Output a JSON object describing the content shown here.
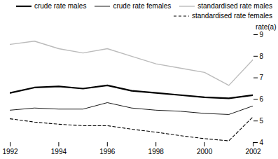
{
  "chart_data": {
    "type": "line",
    "x": [
      1992,
      1993,
      1994,
      1995,
      1996,
      1997,
      1998,
      1999,
      2000,
      2001,
      2002
    ],
    "series": [
      {
        "name": "crude rate males",
        "color": "#000000",
        "line_style": "solid",
        "values": [
          6.3,
          6.55,
          6.6,
          6.5,
          6.65,
          6.4,
          6.3,
          6.2,
          6.1,
          6.05,
          6.2
        ]
      },
      {
        "name": "crude rate females",
        "color": "#000000",
        "line_style": "solid",
        "values": [
          5.5,
          5.6,
          5.55,
          5.55,
          5.85,
          5.6,
          5.5,
          5.45,
          5.35,
          5.3,
          5.7
        ]
      },
      {
        "name": "standardised rate males",
        "color": "#bbbbbb",
        "line_style": "solid",
        "values": [
          8.55,
          8.7,
          8.35,
          8.15,
          8.35,
          8.0,
          7.65,
          7.45,
          7.25,
          6.65,
          7.85
        ]
      },
      {
        "name": "standardised rate females",
        "color": "#000000",
        "line_style": "dashed",
        "values": [
          5.1,
          4.95,
          4.85,
          4.78,
          4.78,
          4.62,
          4.48,
          4.32,
          4.18,
          4.08,
          5.2
        ]
      }
    ],
    "ylabel": "rate(a)",
    "xlim": [
      1992,
      2002
    ],
    "xticks": [
      1992,
      1994,
      1996,
      1998,
      2000,
      2002
    ],
    "ylim": [
      4,
      9
    ],
    "yticks": [
      4,
      5,
      6,
      7,
      8,
      9
    ],
    "grid": false,
    "legend": "upper right"
  }
}
